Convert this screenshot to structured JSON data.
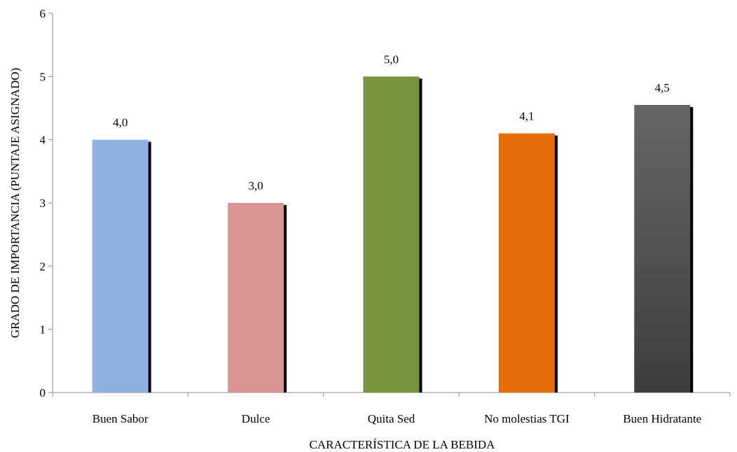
{
  "chart_data": {
    "type": "bar",
    "title": "",
    "xlabel": "CARACTERÍSTICA DE LA BEBIDA",
    "ylabel": "GRADO DE IMPORTANCIA (PUNTAJE ASIGNADO)",
    "ylim": [
      0,
      6
    ],
    "yticks": [
      0,
      1,
      2,
      3,
      4,
      5,
      6
    ],
    "grid": false,
    "categories": [
      "Buen Sabor",
      "Dulce",
      "Quita Sed",
      "No molestias TGI",
      "Buen Hidratante"
    ],
    "values": [
      4.0,
      3.0,
      5.0,
      4.1,
      4.55
    ],
    "data_labels": [
      "4,0",
      "3,0",
      "5,0",
      "4,1",
      "4,5"
    ],
    "colors": [
      "#8eb1e1",
      "#d99694",
      "#77933c",
      "#e46c0a",
      "#595959"
    ],
    "shadow_color": "#000000"
  }
}
